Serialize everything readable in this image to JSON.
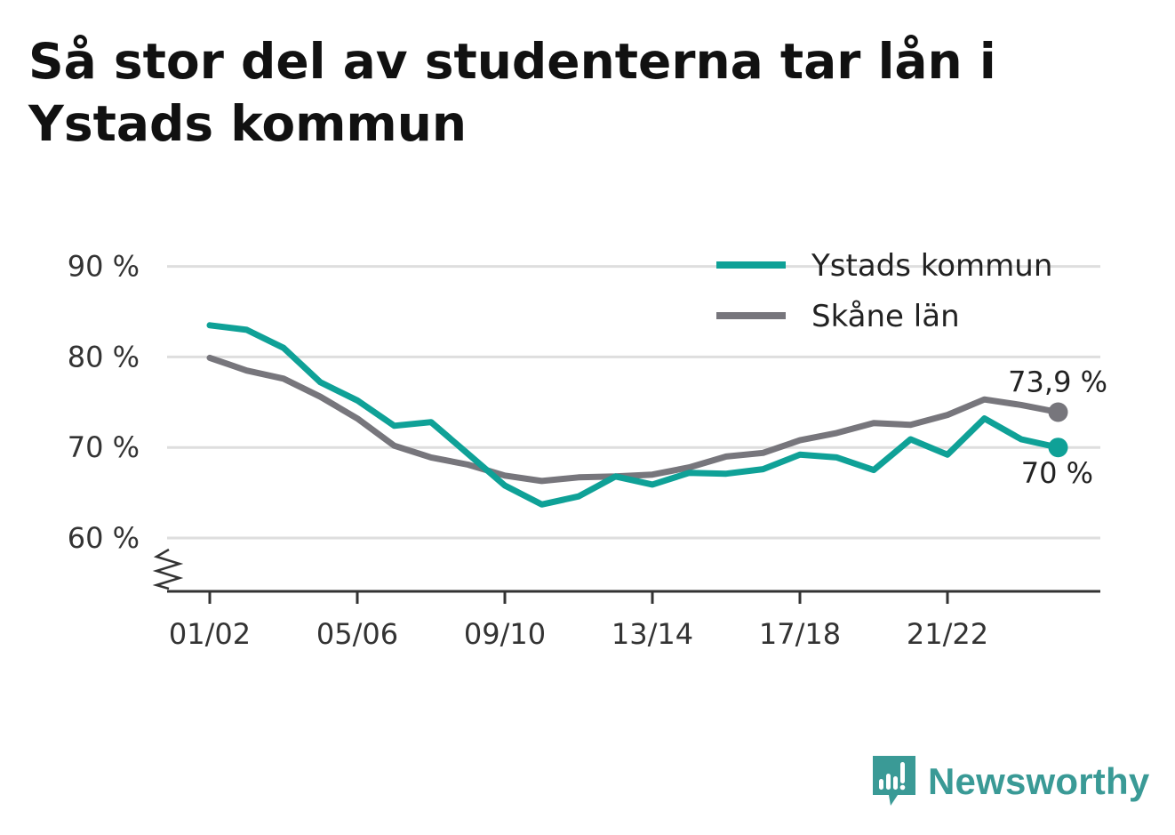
{
  "title": "Så stor del av studenterna tar lån i Ystads kommun",
  "brand": {
    "name": "Newsworthy",
    "icon": "newsworthy-logo-icon",
    "color": "#3a9a96"
  },
  "chart_data": {
    "type": "line",
    "title": "Så stor del av studenterna tar lån i Ystads kommun",
    "x": [
      "01/02",
      "02/03",
      "03/04",
      "04/05",
      "05/06",
      "06/07",
      "07/08",
      "08/09",
      "09/10",
      "10/11",
      "11/12",
      "12/13",
      "13/14",
      "14/15",
      "15/16",
      "16/17",
      "17/18",
      "18/19",
      "19/20",
      "20/21",
      "21/22",
      "22/23",
      "23/24",
      "24/25"
    ],
    "x_tick_labels": [
      "01/02",
      "05/06",
      "09/10",
      "13/14",
      "17/18",
      "21/22"
    ],
    "y_tick_labels": [
      "60 %",
      "70 %",
      "80 %",
      "90 %"
    ],
    "y_ticks": [
      60,
      70,
      80,
      90
    ],
    "ylim": [
      54,
      92
    ],
    "y_axis_break": true,
    "grid": true,
    "legend_position": "top-right",
    "series": [
      {
        "name": "Ystads kommun",
        "color": "#0fa197",
        "values": [
          83.5,
          83.0,
          81.0,
          77.2,
          75.2,
          72.4,
          72.8,
          69.3,
          65.8,
          63.7,
          64.6,
          66.8,
          65.9,
          67.2,
          67.1,
          67.6,
          69.2,
          68.9,
          67.5,
          70.9,
          69.2,
          73.2,
          70.9,
          70.0
        ],
        "end_label": "70 %"
      },
      {
        "name": "Skåne län",
        "color": "#77767c",
        "values": [
          79.9,
          78.5,
          77.6,
          75.6,
          73.2,
          70.2,
          68.9,
          68.1,
          66.9,
          66.3,
          66.7,
          66.8,
          67.0,
          67.8,
          69.0,
          69.4,
          70.8,
          71.6,
          72.7,
          72.5,
          73.6,
          75.3,
          74.7,
          73.9
        ],
        "end_label": "73,9 %"
      }
    ]
  }
}
